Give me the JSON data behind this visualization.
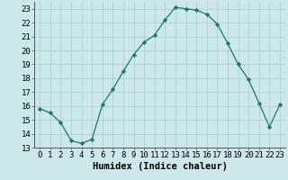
{
  "x": [
    0,
    1,
    2,
    3,
    4,
    5,
    6,
    7,
    8,
    9,
    10,
    11,
    12,
    13,
    14,
    15,
    16,
    17,
    18,
    19,
    20,
    21,
    22,
    23
  ],
  "y": [
    15.8,
    15.5,
    14.8,
    13.5,
    13.3,
    13.6,
    16.1,
    17.2,
    18.5,
    19.7,
    20.6,
    21.1,
    22.2,
    23.1,
    23.0,
    22.9,
    22.6,
    21.9,
    20.5,
    19.0,
    17.9,
    16.2,
    14.5,
    16.1
  ],
  "line_color": "#1a7a6a",
  "marker": "D",
  "marker_size": 2.2,
  "bg_color": "#cce8e8",
  "grid_color": "#aacccc",
  "xlabel": "Humidex (Indice chaleur)",
  "xlim": [
    -0.5,
    23.5
  ],
  "ylim": [
    13,
    23.5
  ],
  "yticks": [
    13,
    14,
    15,
    16,
    17,
    18,
    19,
    20,
    21,
    22,
    23
  ],
  "xticks": [
    0,
    1,
    2,
    3,
    4,
    5,
    6,
    7,
    8,
    9,
    10,
    11,
    12,
    13,
    14,
    15,
    16,
    17,
    18,
    19,
    20,
    21,
    22,
    23
  ],
  "xlabel_fontsize": 7.5,
  "tick_fontsize": 6.5
}
